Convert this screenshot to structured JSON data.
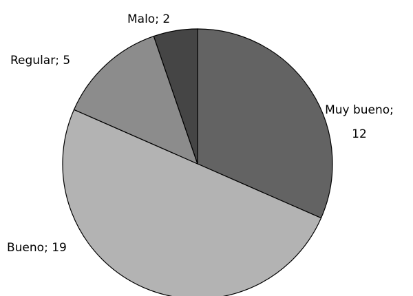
{
  "chart_data": {
    "type": "pie",
    "values": [
      12,
      19,
      5,
      2
    ],
    "value_labels": [
      "Muy bueno; 12",
      "Bueno; 19",
      "Regular; 5",
      "Malo; 2"
    ],
    "colors": [
      "#636363",
      "#b3b3b3",
      "#8c8c8c",
      "#454545"
    ]
  }
}
